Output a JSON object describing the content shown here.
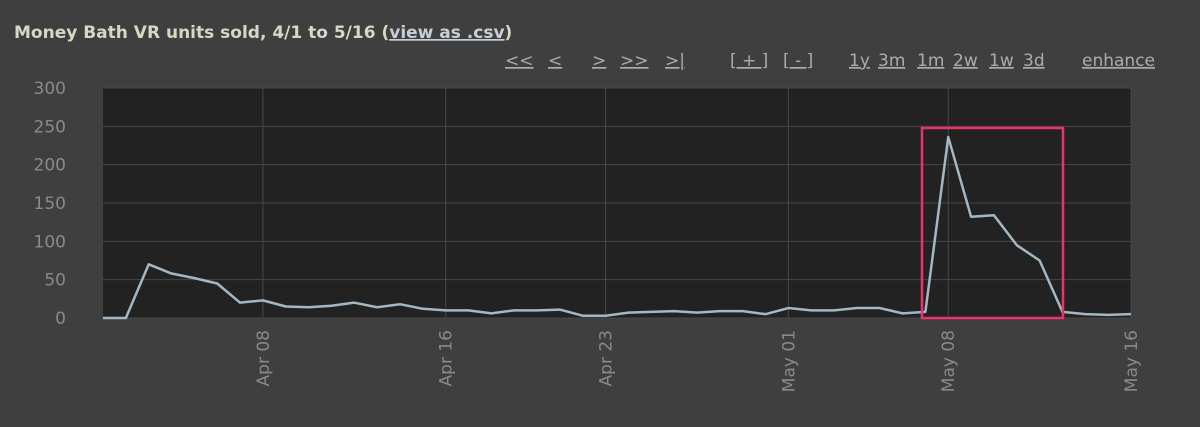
{
  "chart_data": {
    "type": "line",
    "title": "Money Bath VR units sold, 4/1 to 5/16 (",
    "csv_link": "view as .csv",
    "title_end": ")",
    "x": [
      "Apr 01",
      "Apr 02",
      "Apr 03",
      "Apr 04",
      "Apr 05",
      "Apr 06",
      "Apr 07",
      "Apr 08",
      "Apr 09",
      "Apr 10",
      "Apr 11",
      "Apr 12",
      "Apr 13",
      "Apr 14",
      "Apr 15",
      "Apr 16",
      "Apr 17",
      "Apr 18",
      "Apr 19",
      "Apr 20",
      "Apr 21",
      "Apr 22",
      "Apr 23",
      "Apr 24",
      "Apr 25",
      "Apr 26",
      "Apr 27",
      "Apr 28",
      "Apr 29",
      "Apr 30",
      "May 01",
      "May 02",
      "May 03",
      "May 04",
      "May 05",
      "May 06",
      "May 07",
      "May 08",
      "May 09",
      "May 10",
      "May 11",
      "May 12",
      "May 13",
      "May 14",
      "May 15",
      "May 16"
    ],
    "values": [
      0,
      0,
      70,
      58,
      52,
      45,
      20,
      23,
      15,
      14,
      16,
      20,
      14,
      18,
      12,
      10,
      10,
      6,
      10,
      10,
      11,
      3,
      3,
      7,
      8,
      9,
      7,
      9,
      9,
      5,
      13,
      10,
      10,
      13,
      13,
      6,
      8,
      236,
      132,
      134,
      95,
      75,
      8,
      5,
      4,
      5
    ],
    "color": "#a3b8c4",
    "ylim": [
      0,
      300
    ],
    "yticks": [
      0,
      50,
      100,
      150,
      200,
      250,
      300
    ],
    "xticks": [
      "Apr 08",
      "Apr 16",
      "Apr 23",
      "May 01",
      "May 08",
      "May 16"
    ],
    "grid": true
  },
  "toolbar": {
    "nav": [
      "<<",
      "<",
      ">",
      ">>",
      ">|"
    ],
    "zoom": [
      "[ + ]",
      "[ - ]"
    ],
    "ranges": [
      "1y",
      "3m",
      "1m",
      "2w",
      "1w",
      "3d"
    ],
    "enhance": "enhance"
  }
}
